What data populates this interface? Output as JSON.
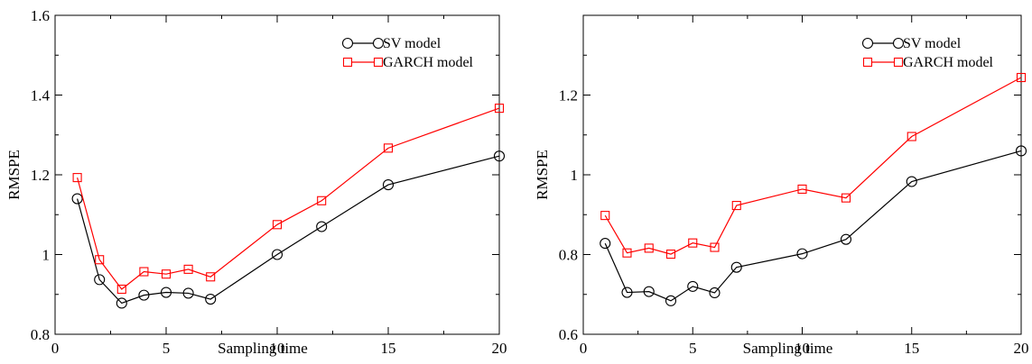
{
  "chart_data": [
    {
      "type": "line",
      "title": "",
      "xlabel": "Sampling time",
      "ylabel": "RMSPE",
      "xlim": [
        0,
        20
      ],
      "ylim": [
        0.8,
        1.6
      ],
      "xticks": [
        0,
        5,
        10,
        15,
        20
      ],
      "yticks": [
        0.8,
        1.0,
        1.2,
        1.4,
        1.6
      ],
      "xtick_labels": [
        "0",
        "5",
        "10",
        "15",
        "20"
      ],
      "ytick_labels": [
        "0.8",
        "1",
        "1.2",
        "1.4",
        "1.6"
      ],
      "grid": false,
      "legend_position": "top-right",
      "x": [
        1,
        2,
        3,
        4,
        5,
        6,
        7,
        10,
        12,
        15,
        20
      ],
      "series": [
        {
          "name": "SV model",
          "color": "#000000",
          "marker": "circle",
          "values": [
            1.14,
            0.937,
            0.878,
            0.898,
            0.905,
            0.903,
            0.888,
            1.0,
            1.07,
            1.175,
            1.247
          ]
        },
        {
          "name": "GARCH model",
          "color": "#ff0000",
          "marker": "square",
          "values": [
            1.193,
            0.987,
            0.913,
            0.957,
            0.951,
            0.963,
            0.944,
            1.075,
            1.135,
            1.267,
            1.367
          ]
        }
      ]
    },
    {
      "type": "line",
      "title": "",
      "xlabel": "Sampling time",
      "ylabel": "RMSPE",
      "xlim": [
        0,
        20
      ],
      "ylim": [
        0.6,
        1.4
      ],
      "xticks": [
        0,
        5,
        10,
        15,
        20
      ],
      "yticks": [
        0.6,
        0.8,
        1.0,
        1.2
      ],
      "xtick_labels": [
        "0",
        "5",
        "10",
        "15",
        "20"
      ],
      "ytick_labels": [
        "0.6",
        "0.8",
        "1",
        "1.2"
      ],
      "grid": false,
      "legend_position": "top-right",
      "x": [
        1,
        2,
        3,
        4,
        5,
        6,
        7,
        10,
        12,
        15,
        20
      ],
      "series": [
        {
          "name": "SV model",
          "color": "#000000",
          "marker": "circle",
          "values": [
            0.828,
            0.705,
            0.707,
            0.684,
            0.72,
            0.704,
            0.768,
            0.802,
            0.838,
            0.983,
            1.06
          ]
        },
        {
          "name": "GARCH model",
          "color": "#ff0000",
          "marker": "square",
          "values": [
            0.898,
            0.804,
            0.816,
            0.801,
            0.829,
            0.818,
            0.923,
            0.964,
            0.942,
            1.096,
            1.244
          ]
        }
      ]
    }
  ]
}
